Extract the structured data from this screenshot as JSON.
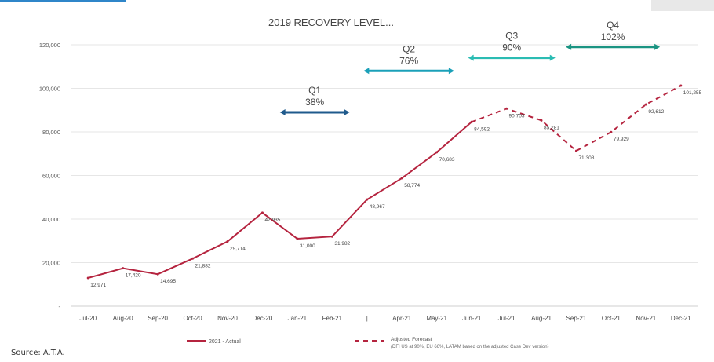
{
  "source": "Source: A.T.A.",
  "chart_data": {
    "type": "line",
    "title": "2019 RECOVERY LEVEL...",
    "xlabel": "",
    "ylabel": "",
    "ylim": [
      0,
      120000
    ],
    "yticks": [
      "120,000",
      "100,000",
      "80,000",
      "60,000",
      "40,000",
      "20,000",
      "-"
    ],
    "categories": [
      "Jul-20",
      "Aug-20",
      "Sep-20",
      "Oct-20",
      "Nov-20",
      "Dec-20",
      "Jan-21",
      "Feb-21",
      "",
      "Apr-21",
      "May-21",
      "Jun-21",
      "Jul-21",
      "Aug-21",
      "Sep-21",
      "Oct-21",
      "Nov-21",
      "Dec-21"
    ],
    "tick_labels": [
      "Jul-20",
      "Aug-20",
      "Sep-20",
      "Oct-20",
      "Nov-20",
      "Dec-20",
      "Jan-21",
      "Feb-21",
      "|",
      "Apr-21",
      "May-21",
      "Jun-21",
      "Jul-21",
      "Aug-21",
      "Sep-21",
      "Oct-21",
      "Nov-21",
      "Dec-21"
    ],
    "grid": true,
    "legend_placement": "bottom",
    "series": [
      {
        "name": "2021 - Actual",
        "style": "solid",
        "color": "#b5243f",
        "values": [
          12971,
          17420,
          14695,
          21882,
          29714,
          42935,
          31000,
          31982,
          48967,
          58774,
          70683,
          84592,
          null,
          null,
          null,
          null,
          null,
          null
        ],
        "labels": [
          "12,971",
          "17,420",
          "14,695",
          "21,882",
          "29,714",
          "42,935",
          "31,000",
          "31,982",
          "48,967",
          "58,774",
          "70,683",
          "84,592",
          "",
          "",
          "",
          "",
          "",
          ""
        ]
      },
      {
        "name": "Adjusted Forecast",
        "note": "(DFI US at 90%, EU 66%, LATAM based on the adjusted Case Dev version)",
        "style": "dashed",
        "color": "#b5243f",
        "values": [
          null,
          null,
          null,
          null,
          null,
          null,
          null,
          null,
          null,
          null,
          null,
          84592,
          90703,
          85281,
          71308,
          79929,
          92612,
          101255
        ],
        "labels": [
          "",
          "",
          "",
          "",
          "",
          "",
          "",
          "",
          "",
          "",
          "",
          "",
          "90,703",
          "85,281",
          "71,308",
          "79,929",
          "92,612",
          "101,255"
        ]
      }
    ],
    "annotations": [
      {
        "quarter": "Q1",
        "pct": "38%",
        "y": 89000,
        "from": 6.0,
        "to": 8.0,
        "color": "#1f5a8c"
      },
      {
        "quarter": "Q2",
        "pct": "76%",
        "y": 108000,
        "from": 8.4,
        "to": 11.0,
        "color": "#1aa0b8"
      },
      {
        "quarter": "Q3",
        "pct": "90%",
        "y": 114000,
        "from": 11.4,
        "to": 13.9,
        "color": "#2bbcb3"
      },
      {
        "quarter": "Q4",
        "pct": "102%",
        "y": 119000,
        "from": 14.2,
        "to": 16.9,
        "color": "#1a9482"
      }
    ]
  }
}
